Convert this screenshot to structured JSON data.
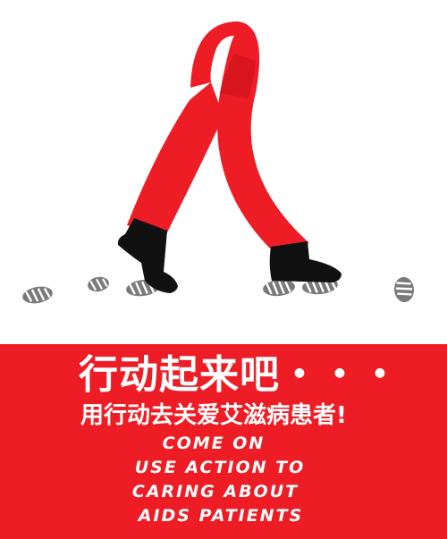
{
  "colors": {
    "ribbon": "#ee1c25",
    "banner": "#ee1c25",
    "shoe": "#111111",
    "footprint": "#7a7a7a",
    "text": "#ffffff"
  },
  "headline_cn": "行动起来吧・・・",
  "subline_cn": "用行动去关爱艾滋病患者!",
  "english_lines": [
    "COME ON",
    "USE ACTION TO",
    "CARING ABOUT",
    "AIDS PATIENTS"
  ],
  "icons": [
    "red-ribbon-icon",
    "shoe-icon",
    "footprint-icon"
  ]
}
